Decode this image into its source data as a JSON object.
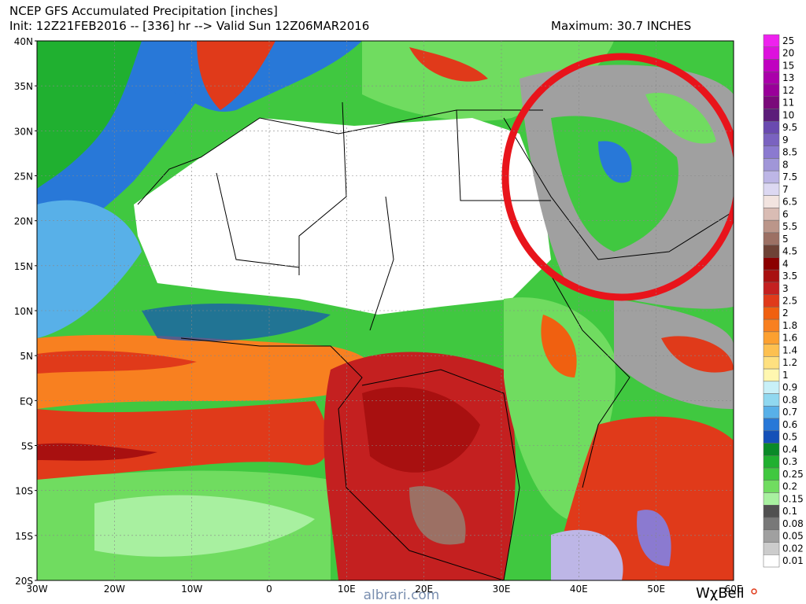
{
  "header": {
    "title": "NCEP GFS Accumulated Precipitation [inches]",
    "init": "Init: 12Z21FEB2016 -- [336] hr --> Valid Sun 12Z06MAR2016",
    "maximum": "Maximum: 30.7 INCHES"
  },
  "lat_labels": [
    "40N",
    "35N",
    "30N",
    "25N",
    "20N",
    "15N",
    "10N",
    "5N",
    "EQ",
    "5S",
    "10S",
    "15S",
    "20S"
  ],
  "lon_labels": [
    "30W",
    "20W",
    "10W",
    "0",
    "10E",
    "20E",
    "30E",
    "40E",
    "50E",
    "60E"
  ],
  "legend": [
    {
      "label": "25",
      "color": "#ee22ee"
    },
    {
      "label": "20",
      "color": "#dd11dd"
    },
    {
      "label": "15",
      "color": "#c000c0"
    },
    {
      "label": "13",
      "color": "#aa00aa"
    },
    {
      "label": "12",
      "color": "#990099"
    },
    {
      "label": "11",
      "color": "#7a0a7a"
    },
    {
      "label": "10",
      "color": "#5c1d7a"
    },
    {
      "label": "9.5",
      "color": "#6a4ab0"
    },
    {
      "label": "9",
      "color": "#7a62c0"
    },
    {
      "label": "8.5",
      "color": "#8b7ad0"
    },
    {
      "label": "8",
      "color": "#a096d8"
    },
    {
      "label": "7.5",
      "color": "#bdb6e6"
    },
    {
      "label": "7",
      "color": "#dcd8f2"
    },
    {
      "label": "6.5",
      "color": "#f2e4e0"
    },
    {
      "label": "6",
      "color": "#d9bcb4"
    },
    {
      "label": "5.5",
      "color": "#bb968a"
    },
    {
      "label": "5",
      "color": "#9c7064"
    },
    {
      "label": "4.5",
      "color": "#6e4236"
    },
    {
      "label": "4",
      "color": "#8b0000"
    },
    {
      "label": "3.5",
      "color": "#a81010"
    },
    {
      "label": "3",
      "color": "#c42020"
    },
    {
      "label": "2.5",
      "color": "#e03a1a"
    },
    {
      "label": "2",
      "color": "#f06010"
    },
    {
      "label": "1.8",
      "color": "#f88020"
    },
    {
      "label": "1.6",
      "color": "#fca030"
    },
    {
      "label": "1.4",
      "color": "#fdc050"
    },
    {
      "label": "1.2",
      "color": "#fee080"
    },
    {
      "label": "1",
      "color": "#fff7b0"
    },
    {
      "label": "0.9",
      "color": "#c8f0f8"
    },
    {
      "label": "0.8",
      "color": "#90d8f0"
    },
    {
      "label": "0.7",
      "color": "#58b0e8"
    },
    {
      "label": "0.6",
      "color": "#2878d8"
    },
    {
      "label": "0.5",
      "color": "#1450b8"
    },
    {
      "label": "0.4",
      "color": "#0a8a28"
    },
    {
      "label": "0.3",
      "color": "#20b030"
    },
    {
      "label": "0.25",
      "color": "#40c840"
    },
    {
      "label": "0.2",
      "color": "#70dc60"
    },
    {
      "label": "0.15",
      "color": "#a8f0a0"
    },
    {
      "label": "0.1",
      "color": "#505050"
    },
    {
      "label": "0.08",
      "color": "#787878"
    },
    {
      "label": "0.05",
      "color": "#a0a0a0"
    },
    {
      "label": "0.02",
      "color": "#cccccc"
    },
    {
      "label": "0.01",
      "color": "#ffffff"
    }
  ],
  "watermark": "albrari.com",
  "brand": "WχBell"
}
